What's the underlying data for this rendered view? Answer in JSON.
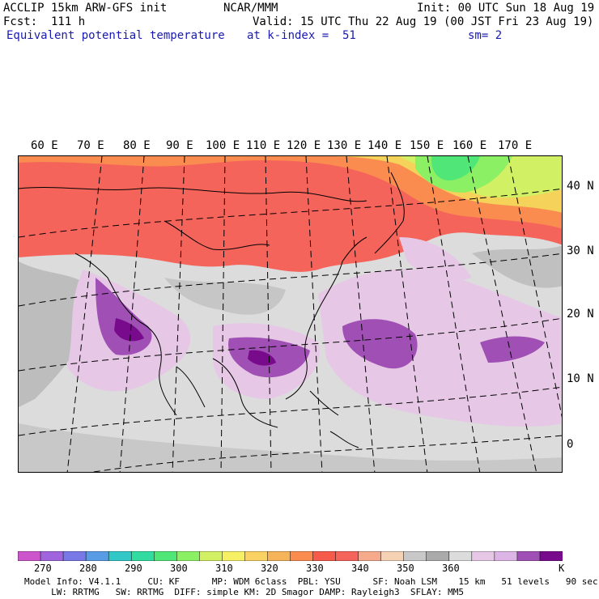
{
  "header": {
    "model": "ACCLIP 15km ARW-GFS init",
    "org": "NCAR/MMM",
    "init": "Init: 00 UTC Sun 18 Aug 19",
    "forecast": "Fcst:  111 h",
    "valid": "Valid: 15 UTC Thu 22 Aug 19 (00 JST Fri 23 Aug 19)",
    "field": "Equivalent potential temperature",
    "level": "at k-index =  51",
    "smooth": "sm= 2"
  },
  "map": {
    "longitude_labels": [
      "60 E",
      "70 E",
      "80 E",
      "90 E",
      "100 E",
      "110 E",
      "120 E",
      "130 E",
      "140 E",
      "150 E",
      "160 E",
      "170 E"
    ],
    "latitude_labels": [
      "40 N",
      "30 N",
      "20 N",
      "10 N",
      "0"
    ]
  },
  "colorbar": {
    "colors": [
      "#cc55cc",
      "#a064dc",
      "#7878e6",
      "#5a9be6",
      "#32c8c8",
      "#32dca0",
      "#50e678",
      "#8cf064",
      "#d2f064",
      "#f5f064",
      "#fad264",
      "#f5b45a",
      "#fa8c50",
      "#f55a4b",
      "#f5645a",
      "#f5aa8c",
      "#f5d2b4",
      "#c8c8c8",
      "#aaaaaa",
      "#dcdcdc",
      "#e6c8e6",
      "#dcb4e6",
      "#a050b4",
      "#780a8c"
    ],
    "labels": [
      "270",
      "280",
      "290",
      "300",
      "310",
      "320",
      "330",
      "340",
      "350",
      "360"
    ],
    "unit": "K"
  },
  "footer": {
    "line1": "Model Info: V4.1.1     CU: KF      MP: WDM 6class  PBL: YSU      SF: Noah LSM    15 km   51 levels   90 sec",
    "line2": "     LW: RRTMG   SW: RRTMG  DIFF: simple KM: 2D Smagor DAMP: Rayleigh3  SFLAY: MM5"
  }
}
